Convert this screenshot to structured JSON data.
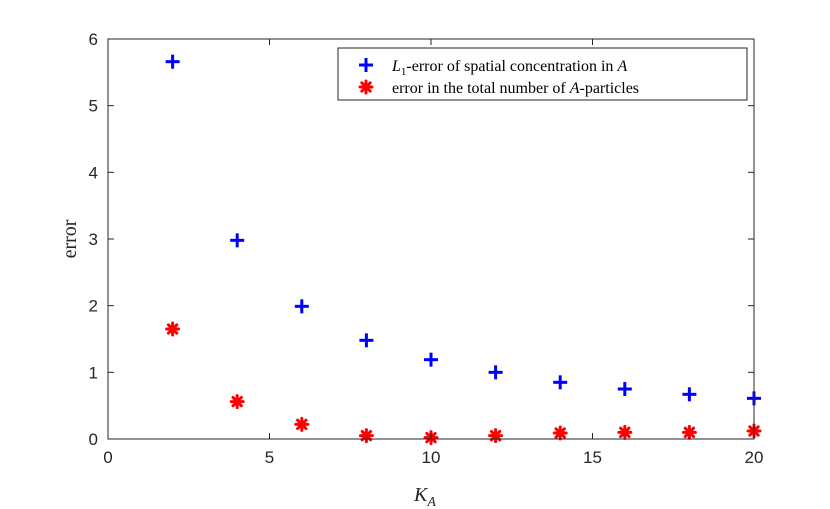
{
  "chart_data": {
    "type": "scatter",
    "title": "",
    "xlabel": "K",
    "xlabel_sub": "A",
    "ylabel": "error",
    "xlim": [
      0,
      20
    ],
    "ylim": [
      0,
      6
    ],
    "xticks": [
      "0",
      "5",
      "10",
      "15",
      "20"
    ],
    "yticks": [
      "0",
      "1",
      "2",
      "3",
      "4",
      "5",
      "6"
    ],
    "grid": false,
    "legend_position": "top-right",
    "series": [
      {
        "name": "L1-error of spatial concentration in A",
        "legend_parts": {
          "var": "L",
          "sub": "1",
          "mid": "-error of spatial concentration in ",
          "end": "A"
        },
        "marker": "plus",
        "color": "#0000ff",
        "x": [
          2,
          4,
          6,
          8,
          10,
          12,
          14,
          16,
          18,
          20
        ],
        "y": [
          5.66,
          2.98,
          1.99,
          1.48,
          1.19,
          1.0,
          0.85,
          0.75,
          0.67,
          0.61
        ]
      },
      {
        "name": "error in the total number of A-particles",
        "legend_parts": {
          "pre": "error in the total number of ",
          "var": "A",
          "post": "-particles"
        },
        "marker": "asterisk",
        "color": "#ff0000",
        "x": [
          2,
          4,
          6,
          8,
          10,
          12,
          14,
          16,
          18,
          20
        ],
        "y": [
          1.65,
          0.56,
          0.22,
          0.05,
          0.02,
          0.05,
          0.09,
          0.1,
          0.1,
          0.12
        ]
      }
    ]
  }
}
